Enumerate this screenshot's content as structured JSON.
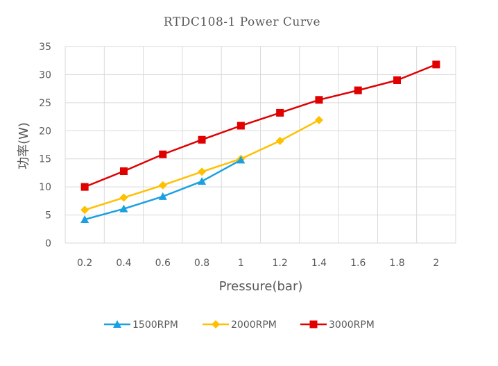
{
  "chart_data": {
    "type": "line",
    "title": "RTDC108-1 Power Curve",
    "xlabel": "Pressure(bar)",
    "ylabel": "功率(W)",
    "x": [
      0.2,
      0.4,
      0.6,
      0.8,
      1.0,
      1.2,
      1.4,
      1.6,
      1.8,
      2.0
    ],
    "xtick_labels": [
      "0.2",
      "0.4",
      "0.6",
      "0.8",
      "1",
      "1.2",
      "1.4",
      "1.6",
      "1.8",
      "2"
    ],
    "ylim": [
      0,
      35
    ],
    "yticks": [
      0,
      5,
      10,
      15,
      20,
      25,
      30,
      35
    ],
    "grid": true,
    "legend_position": "bottom",
    "series": [
      {
        "name": "1500RPM",
        "color": "#1AA0E0",
        "marker": "triangle",
        "x": [
          0.2,
          0.4,
          0.6,
          0.8,
          1.0
        ],
        "values": [
          4.2,
          6.1,
          8.3,
          11.0,
          14.8
        ]
      },
      {
        "name": "2000RPM",
        "color": "#FFC000",
        "marker": "diamond",
        "x": [
          0.2,
          0.4,
          0.6,
          0.8,
          1.0,
          1.2,
          1.4
        ],
        "values": [
          5.9,
          8.1,
          10.3,
          12.7,
          15.0,
          18.2,
          21.9
        ]
      },
      {
        "name": "3000RPM",
        "color": "#E00000",
        "marker": "square",
        "x": [
          0.2,
          0.4,
          0.6,
          0.8,
          1.0,
          1.2,
          1.4,
          1.6,
          1.8,
          2.0
        ],
        "values": [
          10.0,
          12.8,
          15.8,
          18.4,
          20.9,
          23.2,
          25.5,
          27.2,
          29.0,
          31.8
        ]
      }
    ]
  }
}
